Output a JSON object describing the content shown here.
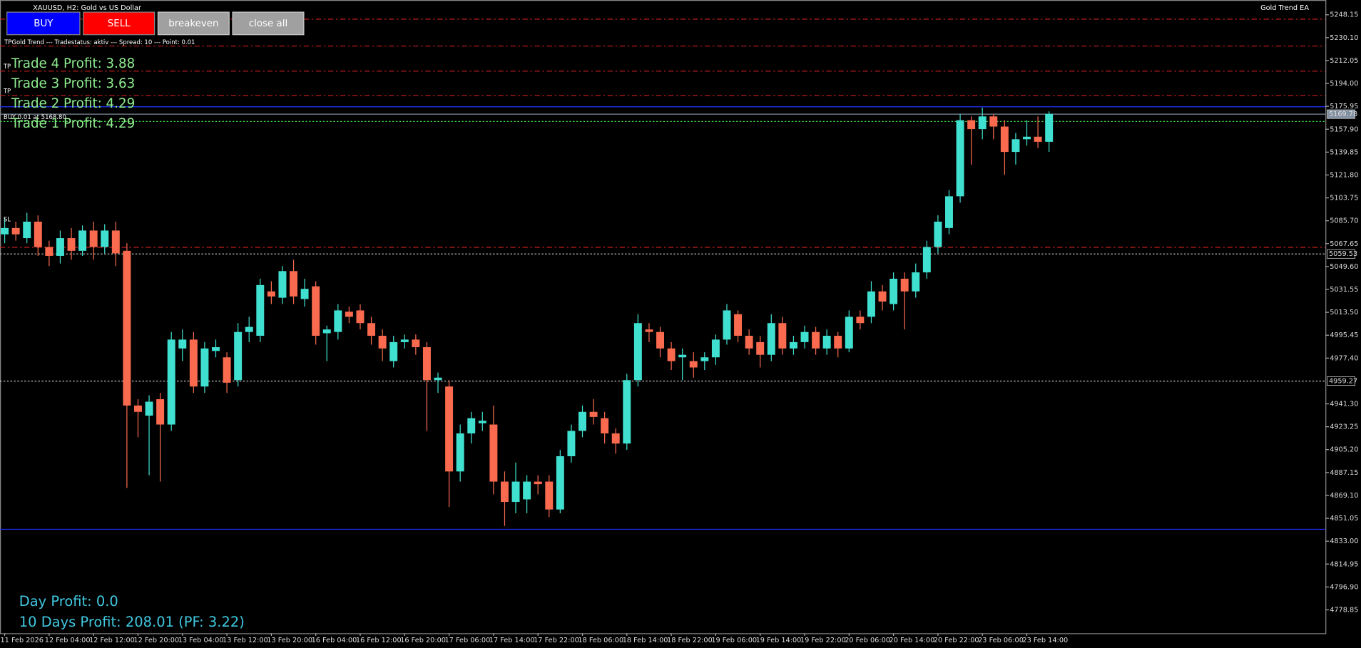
{
  "ui": {
    "title": "XAUUSD, H2:  Gold vs US Dollar",
    "ea_name": "Gold Trend EA",
    "buttons": [
      "BUY",
      "SELL",
      "breakeven",
      "close all"
    ],
    "status": "TPGold Trend --- Tradestatus: aktiv --- Spread: 10 --- Point: 0.01",
    "trades": [
      "Trade 4 Profit: 3.88",
      "Trade 3 Profit: 3.63",
      "Trade 2 Profit: 4.29",
      "Trade 1 Profit: 4.29"
    ],
    "tp_labels": [
      "TP",
      "TP"
    ],
    "order_label": "BUY 0.01 at 5168.80",
    "sl_label": "SL",
    "day_profit": "Day Profit: 0.0",
    "ten_days_profit": "10 Days Profit: 208.01 (PF: 3.22)"
  },
  "chart_data": {
    "type": "candlestick",
    "up_color": "#40e0d0",
    "down_color": "#fa6a4e",
    "categories": [
      "11 Feb 2026",
      null,
      null,
      null,
      "12 Feb 04:00",
      null,
      null,
      null,
      "12 Feb 12:00",
      null,
      null,
      null,
      "12 Feb 20:00",
      null,
      null,
      null,
      "13 Feb 04:00",
      null,
      null,
      null,
      "13 Feb 12:00",
      null,
      null,
      null,
      "13 Feb 20:00",
      null,
      null,
      null,
      "16 Feb 04:00",
      null,
      null,
      null,
      "16 Feb 12:00",
      null,
      null,
      null,
      "16 Feb 20:00",
      null,
      null,
      null,
      "17 Feb 06:00",
      null,
      null,
      null,
      "17 Feb 14:00",
      null,
      null,
      null,
      "17 Feb 22:00",
      null,
      null,
      null,
      "18 Feb 06:00",
      null,
      null,
      null,
      "18 Feb 14:00",
      null,
      null,
      null,
      "18 Feb 22:00",
      null,
      null,
      null,
      "19 Feb 06:00",
      null,
      null,
      null,
      "19 Feb 14:00",
      null,
      null,
      null,
      "19 Feb 22:00",
      null,
      null,
      null,
      "20 Feb 06:00",
      null,
      null,
      null,
      "20 Feb 14:00",
      null,
      null,
      null,
      "20 Feb 22:00",
      null,
      null,
      null,
      "23 Feb 06:00",
      null,
      null,
      null,
      "23 Feb 14:00",
      null,
      null
    ],
    "open": [
      5075,
      5080,
      5072,
      5085,
      5065,
      5058,
      5072,
      5062,
      5078,
      5065,
      5078,
      5062,
      4940,
      4932,
      4945,
      4925,
      4985,
      4992,
      4955,
      4983,
      4978,
      4960,
      4998,
      4995,
      5030,
      5025,
      5046,
      5024,
      5034,
      4997,
      4998,
      5014,
      5015,
      5005,
      4995,
      4975,
      4990,
      4992,
      4986,
      4960,
      4955,
      4888,
      4918,
      4926,
      4925,
      4880,
      4864,
      4866,
      4880,
      4880,
      4858,
      4900,
      4920,
      4935,
      4930,
      4918,
      4910,
      4960,
      5000,
      4998,
      4985,
      4978,
      4975,
      4975,
      4978,
      4992,
      5012,
      4995,
      4990,
      4980,
      5005,
      4985,
      4990,
      4998,
      4985,
      4995,
      4985,
      5010,
      5010,
      5030,
      5020,
      5040,
      5030,
      5045,
      5065,
      5080,
      5105,
      5165,
      5158,
      5168,
      5160,
      5140,
      5150,
      5152,
      5148
    ],
    "high": [
      5088,
      5085,
      5092,
      5090,
      5070,
      5078,
      5080,
      5082,
      5085,
      5083,
      5085,
      5068,
      4945,
      4948,
      4950,
      4998,
      5000,
      4998,
      4990,
      4992,
      4982,
      5005,
      5010,
      5040,
      5038,
      5050,
      5055,
      5040,
      5038,
      5003,
      5020,
      5018,
      5020,
      5010,
      5000,
      4995,
      4996,
      4996,
      4990,
      4966,
      4960,
      4925,
      4935,
      4935,
      4940,
      4888,
      4895,
      4885,
      4885,
      4885,
      4905,
      4925,
      4940,
      4945,
      4935,
      4922,
      4965,
      5012,
      5005,
      5002,
      4990,
      4985,
      4982,
      4982,
      4996,
      5020,
      5015,
      5000,
      4995,
      5012,
      5010,
      4995,
      5003,
      5002,
      5000,
      4998,
      5015,
      5015,
      5038,
      5035,
      5045,
      5045,
      5052,
      5070,
      5090,
      5110,
      5170,
      5168,
      5175,
      5170,
      5165,
      5155,
      5165,
      5168,
      5172
    ],
    "low": [
      5068,
      5070,
      5068,
      5058,
      5050,
      5052,
      5055,
      5058,
      5055,
      5060,
      5050,
      4875,
      4915,
      4885,
      4880,
      4920,
      4975,
      4950,
      4950,
      4978,
      4950,
      4955,
      4990,
      4990,
      5020,
      5020,
      5020,
      5018,
      4988,
      4975,
      4992,
      5005,
      5000,
      4988,
      4975,
      4970,
      4985,
      4980,
      4920,
      4950,
      4860,
      4880,
      4910,
      4920,
      4870,
      4845,
      4855,
      4855,
      4870,
      4852,
      4855,
      4895,
      4915,
      4925,
      4910,
      4902,
      4905,
      4955,
      4990,
      4978,
      4968,
      4960,
      4962,
      4968,
      4972,
      4988,
      4990,
      4980,
      4970,
      4975,
      4980,
      4980,
      4985,
      4980,
      4980,
      4978,
      4982,
      5000,
      5005,
      5015,
      5015,
      5000,
      5025,
      5040,
      5060,
      5075,
      5100,
      5130,
      5150,
      5150,
      5122,
      5130,
      5145,
      5143,
      5140
    ],
    "close": [
      5080,
      5075,
      5085,
      5065,
      5058,
      5072,
      5062,
      5078,
      5065,
      5078,
      5060,
      4940,
      4935,
      4943,
      4925,
      4992,
      4992,
      4955,
      4985,
      4986,
      4958,
      4998,
      5002,
      5035,
      5026,
      5046,
      5026,
      5032,
      4995,
      5000,
      5015,
      5010,
      5005,
      4995,
      4985,
      4990,
      4992,
      4986,
      4960,
      4962,
      4888,
      4918,
      4930,
      4928,
      4880,
      4864,
      4880,
      4880,
      4878,
      4858,
      4900,
      4920,
      4935,
      4931,
      4918,
      4910,
      4960,
      5005,
      4998,
      4985,
      4975,
      4980,
      4970,
      4978,
      4992,
      5015,
      4995,
      4985,
      4980,
      5005,
      4985,
      4990,
      4998,
      4985,
      4995,
      4985,
      5010,
      5005,
      5030,
      5022,
      5040,
      5030,
      5045,
      5065,
      5085,
      5105,
      5165,
      5158,
      5168,
      5160,
      5140,
      5150,
      5152,
      5148,
      5170
    ],
    "ylim": [
      4760.4,
      5259.8
    ],
    "yticks": [
      5248.15,
      {
        "value": 5230.1,
        "label": "5230.10"
      },
      5212.05,
      {
        "value": 5194,
        "label": "5194.00"
      },
      5175.95,
      {
        "value": 5157.9,
        "label": "5157.90"
      },
      5139.85,
      {
        "value": 5121.8,
        "label": "5121.80"
      },
      5103.75,
      {
        "value": 5085.7,
        "label": "5085.70"
      },
      5067.65,
      {
        "value": 5049.6,
        "label": "5049.60"
      },
      5031.55,
      {
        "value": 5013.5,
        "label": "5013.50"
      },
      4995.45,
      {
        "value": 4977.4,
        "label": "4977.40"
      },
      {
        "value": 4941.3,
        "label": "4941.30"
      },
      4923.25,
      {
        "value": 4905.2,
        "label": "4905.20"
      },
      4887.15,
      {
        "value": 4869.1,
        "label": "4869.10"
      },
      4851.05,
      {
        "value": 4833,
        "label": "4833.00"
      },
      4814.95,
      {
        "value": 4796.9,
        "label": "4796.90"
      },
      4778.85
    ],
    "levels": [
      {
        "value": 5244.7,
        "color": "#d02020",
        "dash": "6 3 2 3"
      },
      {
        "value": 5223.5,
        "color": "#d02020",
        "dash": "6 3 2 3"
      },
      {
        "value": 5203.7,
        "color": "#d02020",
        "dash": "6 3 2 3"
      },
      {
        "value": 5184.5,
        "color": "#d02020",
        "dash": "6 3 2 3"
      },
      {
        "value": 5175.6,
        "color": "#2030ff",
        "dash": "none"
      },
      {
        "value": 5169.78,
        "color": "#8090a0",
        "dash": "none"
      },
      {
        "value": 5164,
        "color": "#40d040",
        "dash": "2 2"
      },
      {
        "value": 5064.8,
        "color": "#d02020",
        "dash": "6 3 2 3"
      },
      {
        "value": 5059.53,
        "color": "#c0c0c0",
        "dash": "2 2"
      },
      {
        "value": 4959.27,
        "color": "#e0e0e0",
        "dash": "2 2"
      },
      {
        "value": 4842.4,
        "color": "#2030ff",
        "dash": "none"
      }
    ],
    "price_markers": [
      5169.78,
      5059.53,
      4959.27
    ]
  }
}
